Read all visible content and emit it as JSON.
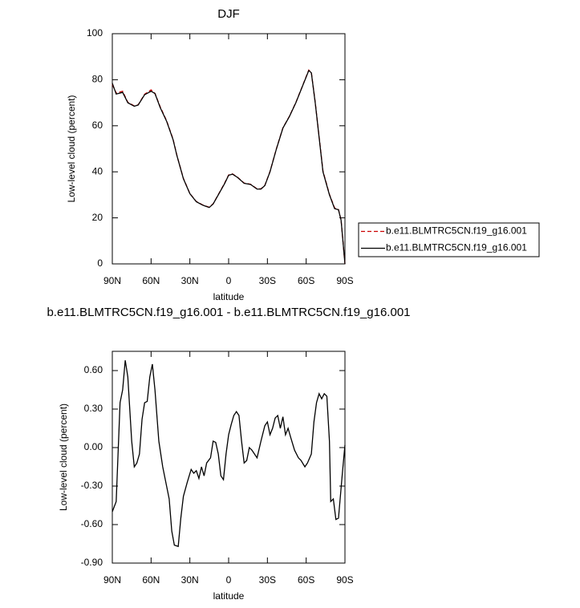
{
  "chart_data": [
    {
      "type": "line",
      "title": "DJF",
      "xlabel": "latitude",
      "ylabel": "Low-level cloud (percent)",
      "x": [
        90,
        87,
        82,
        78,
        73,
        70,
        65,
        60,
        57,
        53,
        48,
        43,
        40,
        35,
        30,
        25,
        20,
        15,
        12,
        7,
        3,
        0,
        -3,
        -7,
        -12,
        -17,
        -22,
        -25,
        -28,
        -32,
        -37,
        -42,
        -47,
        -52,
        -57,
        -62,
        -64,
        -67,
        -70,
        -73,
        -78,
        -82,
        -85,
        -87,
        -90
      ],
      "series": [
        {
          "name": "b.e11.BLMTRC5CN.f19_g16.001",
          "color": "#cc0000",
          "style": "dashed",
          "values": [
            78,
            74.2,
            75,
            70.2,
            68.6,
            69.1,
            73.7,
            75.6,
            74.1,
            68.3,
            62.2,
            54.2,
            47.1,
            37.1,
            30.6,
            27.1,
            25.6,
            24.6,
            26.1,
            31.1,
            35.2,
            38.6,
            39.1,
            37.6,
            35.1,
            34.6,
            32.6,
            32.6,
            34.1,
            40.1,
            50.1,
            59.1,
            64.1,
            70.1,
            77.1,
            84.2,
            83.2,
            70.2,
            55.3,
            40.3,
            30.2,
            24.3,
            23.6,
            19.1,
            0
          ]
        },
        {
          "name": "b.e11.BLMTRC5CN.f19_g16.001",
          "color": "#000000",
          "style": "solid",
          "values": [
            78.5,
            73.8,
            74.5,
            70,
            68.5,
            69,
            73.5,
            75,
            74,
            68,
            62,
            54,
            47,
            37,
            30.5,
            27,
            25.5,
            24.5,
            26,
            31,
            35,
            38.5,
            39,
            37.5,
            35,
            34.5,
            32.5,
            32.5,
            34,
            40,
            50,
            59,
            64,
            70,
            77,
            84,
            83,
            70,
            55,
            40,
            30,
            24,
            23.5,
            19,
            0
          ]
        }
      ],
      "xlim": [
        90,
        -90
      ],
      "xticks": [
        {
          "value": 90,
          "label": "90N"
        },
        {
          "value": 60,
          "label": "60N"
        },
        {
          "value": 30,
          "label": "30N"
        },
        0,
        {
          "value": -30,
          "label": "30S"
        },
        {
          "value": -60,
          "label": "60S"
        },
        {
          "value": -90,
          "label": "90S"
        }
      ],
      "ylim": [
        0,
        100
      ],
      "yticks": [
        0,
        20,
        40,
        60,
        80,
        100
      ],
      "legend": "right"
    },
    {
      "type": "line",
      "title": "b.e11.BLMTRC5CN.f19_g16.001 - b.e11.BLMTRC5CN.f19_g16.001",
      "xlabel": "latitude",
      "ylabel": "Low-level cloud (percent)",
      "x": [
        90,
        87,
        84,
        82,
        80,
        78,
        75,
        73,
        71,
        69,
        67,
        65,
        63,
        61,
        59,
        57,
        54,
        51,
        48,
        46,
        44,
        42,
        39,
        37,
        35,
        32,
        29,
        27,
        25,
        23,
        21,
        19,
        17,
        14,
        12,
        10,
        8,
        6,
        4,
        2,
        0,
        -2,
        -4,
        -6,
        -8,
        -10,
        -12,
        -14,
        -16,
        -18,
        -20,
        -22,
        -25,
        -28,
        -30,
        -32,
        -34,
        -36,
        -38,
        -40,
        -42,
        -44,
        -46,
        -48,
        -51,
        -54,
        -56,
        -59,
        -61,
        -64,
        -66,
        -68,
        -70,
        -72,
        -74,
        -76,
        -78,
        -79,
        -81,
        -83,
        -85,
        -88,
        -90
      ],
      "series": [
        {
          "color": "#000000",
          "style": "solid",
          "values": [
            -0.5,
            -0.42,
            0.35,
            0.45,
            0.68,
            0.55,
            0.05,
            -0.15,
            -0.12,
            -0.05,
            0.22,
            0.35,
            0.36,
            0.55,
            0.65,
            0.45,
            0.05,
            -0.15,
            -0.3,
            -0.4,
            -0.65,
            -0.76,
            -0.77,
            -0.55,
            -0.38,
            -0.27,
            -0.17,
            -0.2,
            -0.18,
            -0.24,
            -0.15,
            -0.22,
            -0.12,
            -0.08,
            0.05,
            0.04,
            -0.05,
            -0.22,
            -0.25,
            -0.05,
            0.1,
            0.18,
            0.25,
            0.28,
            0.25,
            0.05,
            -0.12,
            -0.1,
            0,
            -0.02,
            -0.05,
            -0.08,
            0.05,
            0.17,
            0.2,
            0.1,
            0.15,
            0.23,
            0.25,
            0.15,
            0.24,
            0.1,
            0.15,
            0.08,
            -0.02,
            -0.08,
            -0.1,
            -0.15,
            -0.12,
            -0.05,
            0.2,
            0.35,
            0.42,
            0.38,
            0.42,
            0.4,
            0.05,
            -0.42,
            -0.4,
            -0.56,
            -0.55,
            -0.2,
            0.02
          ]
        }
      ],
      "xlim": [
        90,
        -90
      ],
      "xticks": [
        {
          "value": 90,
          "label": "90N"
        },
        {
          "value": 60,
          "label": "60N"
        },
        {
          "value": 30,
          "label": "30N"
        },
        0,
        {
          "value": -30,
          "label": "30S"
        },
        {
          "value": -60,
          "label": "60S"
        },
        {
          "value": -90,
          "label": "90S"
        }
      ],
      "ylim": [
        -0.9,
        0.75
      ],
      "yticks": [
        {
          "value": -0.9,
          "label": "-0.90"
        },
        {
          "value": -0.6,
          "label": "-0.60"
        },
        {
          "value": -0.3,
          "label": "-0.30"
        },
        {
          "value": 0,
          "label": "0.00"
        },
        {
          "value": 0.3,
          "label": "0.30"
        },
        {
          "value": 0.6,
          "label": "0.60"
        }
      ]
    }
  ]
}
